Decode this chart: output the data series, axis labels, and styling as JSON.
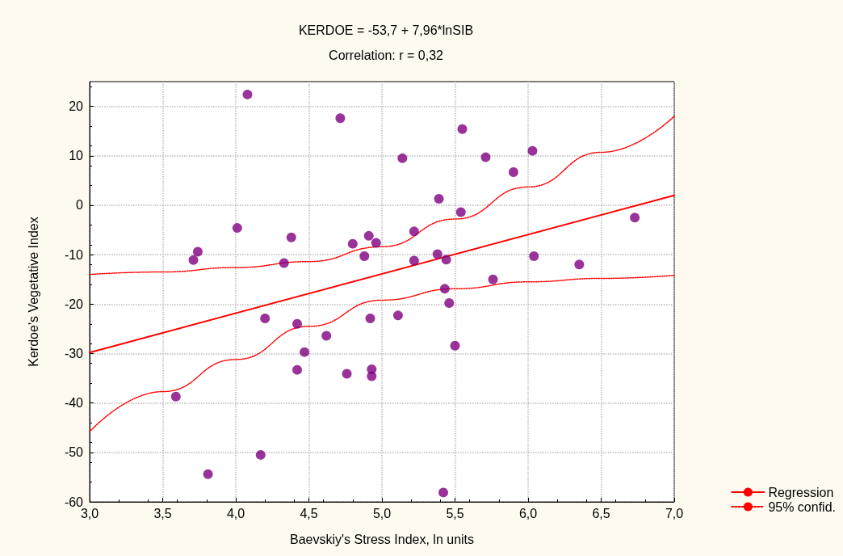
{
  "chart_data": {
    "type": "scatter",
    "title": "KERDOE = -53,7 + 7,96*lnSIB",
    "subtitle": "Correlation: r = 0,32",
    "xlabel": "Baevskiy's Stress Index, ln units",
    "ylabel": "Kerdoe's Vegetative Index",
    "xlim": [
      3,
      7
    ],
    "xticks": [
      {
        "value": 3,
        "label": "3,0"
      },
      {
        "value": 3.5,
        "label": "3,5"
      },
      {
        "value": 4,
        "label": "4,0"
      },
      {
        "value": 4.5,
        "label": "4,5"
      },
      {
        "value": 5,
        "label": "5,0"
      },
      {
        "value": 5.5,
        "label": "5,5"
      },
      {
        "value": 6,
        "label": "6,0"
      },
      {
        "value": 6.5,
        "label": "6,5"
      },
      {
        "value": 7,
        "label": "7,0"
      }
    ],
    "ylim": [
      -60,
      25
    ],
    "yticks": [
      -60,
      -50,
      -40,
      -30,
      -20,
      -10,
      0,
      10,
      20
    ],
    "grid": true,
    "legend": "bottom right",
    "series": [
      {
        "color": "#800080",
        "marker": "circle",
        "x": [
          4.08,
          4.715,
          4.01,
          3.74,
          3.71,
          4.38,
          4.33,
          4.8,
          4.91,
          4.96,
          4.88,
          4.2,
          4.42,
          4.62,
          4.47,
          4.42,
          4.76,
          4.93,
          4.93,
          4.92,
          3.59,
          4.17,
          3.81,
          5.55,
          5.14,
          5.71,
          5.9,
          6.03,
          5.39,
          5.54,
          6.73,
          5.22,
          5.22,
          5.38,
          5.44,
          6.04,
          6.35,
          5.76,
          5.43,
          5.46,
          5.11,
          5.5,
          5.42
        ],
        "values": [
          22.4,
          17.6,
          -4.6,
          -9.4,
          -11.1,
          -6.5,
          -11.7,
          -7.8,
          -6.2,
          -7.6,
          -10.3,
          -22.9,
          -24,
          -26.4,
          -29.7,
          -33.3,
          -34.1,
          -33.2,
          -34.6,
          -22.9,
          -38.7,
          -50.5,
          -54.4,
          15.4,
          9.5,
          9.7,
          6.7,
          11,
          1.3,
          -1.4,
          -2.5,
          -5.3,
          -11.2,
          -9.9,
          -11,
          -10.3,
          -12,
          -15,
          -16.9,
          -19.8,
          -22.3,
          -28.4,
          -58.1
        ]
      },
      {
        "type": "line",
        "name": "Regression",
        "color": "#ff0000",
        "marker": "none",
        "line_style": "solid",
        "x": [
          3,
          7
        ],
        "values": [
          -29.8,
          2
        ]
      },
      {
        "type": "line",
        "name": "95% confid.",
        "color": "#ff0000",
        "marker": "none",
        "line_style": "dotted",
        "x": [
          3,
          3.5,
          4,
          4.5,
          5,
          5.5,
          6,
          6.5,
          7
        ],
        "values": [
          -14,
          -13.5,
          -12.6,
          -11.4,
          -8.4,
          -2.8,
          3.7,
          10.7,
          18
        ]
      },
      {
        "type": "line",
        "color": "#ff0000",
        "marker": "none",
        "line_style": "dotted",
        "x": [
          3,
          3.5,
          4,
          4.5,
          5,
          5.5,
          6,
          6.5,
          7
        ],
        "values": [
          -45.8,
          -37.7,
          -31.2,
          -24.5,
          -19.2,
          -16.9,
          -15.5,
          -14.8,
          -14.2
        ]
      }
    ]
  }
}
